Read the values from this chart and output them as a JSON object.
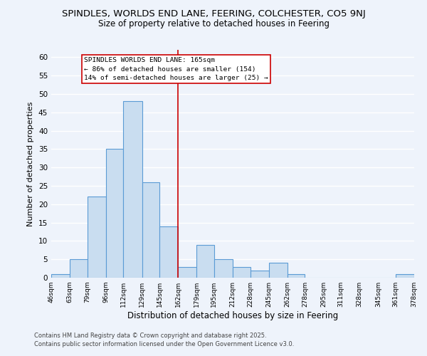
{
  "title": "SPINDLES, WORLDS END LANE, FEERING, COLCHESTER, CO5 9NJ",
  "subtitle": "Size of property relative to detached houses in Feering",
  "xlabel": "Distribution of detached houses by size in Feering",
  "ylabel": "Number of detached properties",
  "bar_edges": [
    46,
    63,
    79,
    96,
    112,
    129,
    145,
    162,
    179,
    195,
    212,
    228,
    245,
    262,
    278,
    295,
    311,
    328,
    345,
    361,
    378
  ],
  "bar_heights": [
    1,
    5,
    22,
    35,
    48,
    26,
    14,
    3,
    9,
    5,
    3,
    2,
    4,
    1,
    0,
    0,
    0,
    0,
    0,
    1
  ],
  "bar_color": "#c9ddf0",
  "bar_edgecolor": "#5b9bd5",
  "vline_x": 162,
  "vline_color": "#cc0000",
  "ylim": [
    0,
    62
  ],
  "yticks": [
    0,
    5,
    10,
    15,
    20,
    25,
    30,
    35,
    40,
    45,
    50,
    55,
    60
  ],
  "annotation_line1": "SPINDLES WORLDS END LANE: 165sqm",
  "annotation_line2": "← 86% of detached houses are smaller (154)",
  "annotation_line3": "14% of semi-detached houses are larger (25) →",
  "footer_line1": "Contains HM Land Registry data © Crown copyright and database right 2025.",
  "footer_line2": "Contains public sector information licensed under the Open Government Licence v3.0.",
  "bg_color": "#eef3fb",
  "grid_color": "#ffffff",
  "title_fontsize": 9.5,
  "subtitle_fontsize": 8.5,
  "tick_labels": [
    "46sqm",
    "63sqm",
    "79sqm",
    "96sqm",
    "112sqm",
    "129sqm",
    "145sqm",
    "162sqm",
    "179sqm",
    "195sqm",
    "212sqm",
    "228sqm",
    "245sqm",
    "262sqm",
    "278sqm",
    "295sqm",
    "311sqm",
    "328sqm",
    "345sqm",
    "361sqm",
    "378sqm"
  ]
}
